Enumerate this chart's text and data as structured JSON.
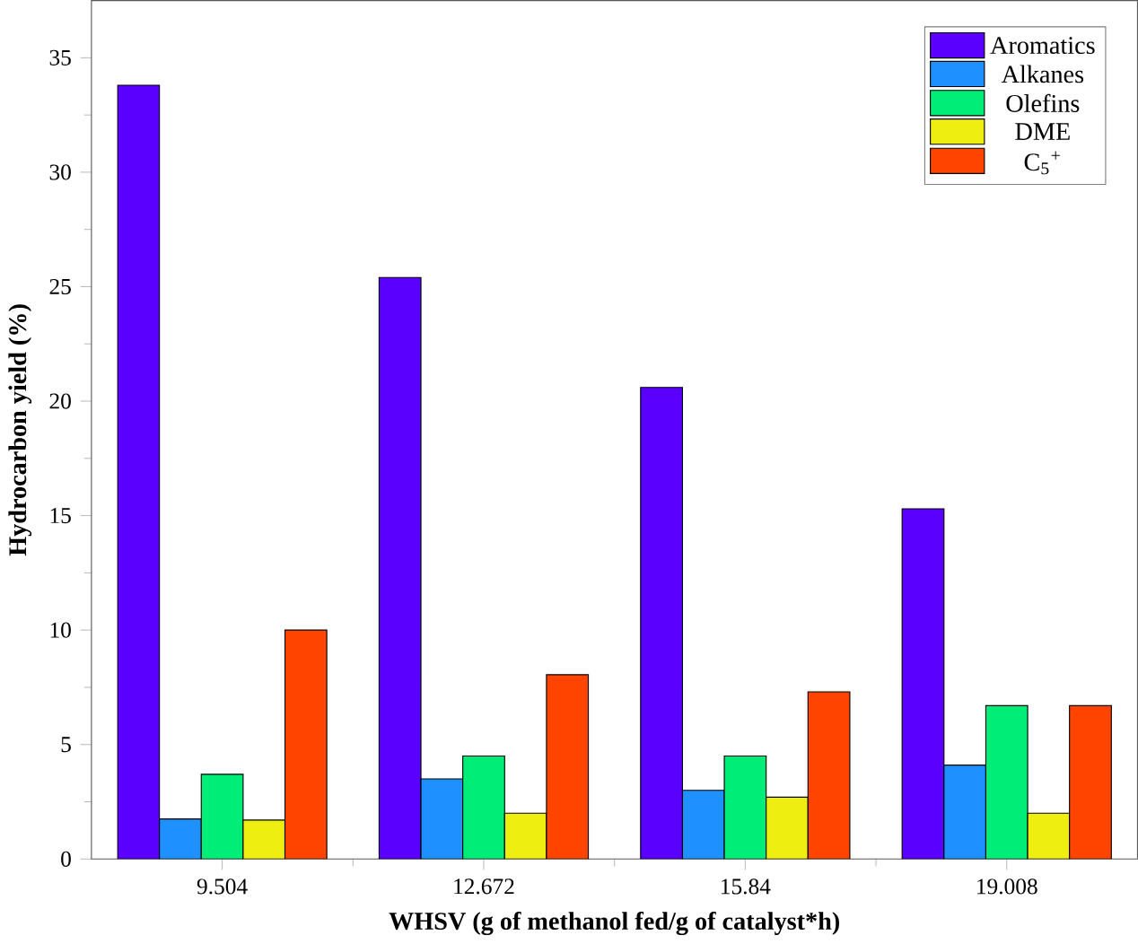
{
  "chart_data": {
    "type": "bar",
    "xlabel": "WHSV (g of methanol fed/g of catalyst*h)",
    "ylabel": "Hydrocarbon yield (%)",
    "categories": [
      "9.504",
      "12.672",
      "15.84",
      "19.008"
    ],
    "series": [
      {
        "name": "Aromatics",
        "color": "#5a00ff",
        "values": [
          33.8,
          25.4,
          20.6,
          15.3
        ]
      },
      {
        "name": "Alkanes",
        "color": "#1e90ff",
        "values": [
          1.75,
          3.5,
          3.0,
          4.1
        ]
      },
      {
        "name": "Olefins",
        "color": "#00ee77",
        "values": [
          3.7,
          4.5,
          4.5,
          6.7
        ]
      },
      {
        "name": "DME",
        "color": "#eeee11",
        "values": [
          1.7,
          2.0,
          2.7,
          2.0
        ]
      },
      {
        "name": "C$_{5}$$^{+}$",
        "color": "#ff4400",
        "values": [
          10.0,
          8.05,
          7.3,
          6.7
        ]
      }
    ],
    "ylim": [
      0,
      37.5
    ],
    "yticks": [
      0,
      5,
      10,
      15,
      20,
      25,
      30,
      35
    ],
    "legend": "top right",
    "grid": false
  }
}
